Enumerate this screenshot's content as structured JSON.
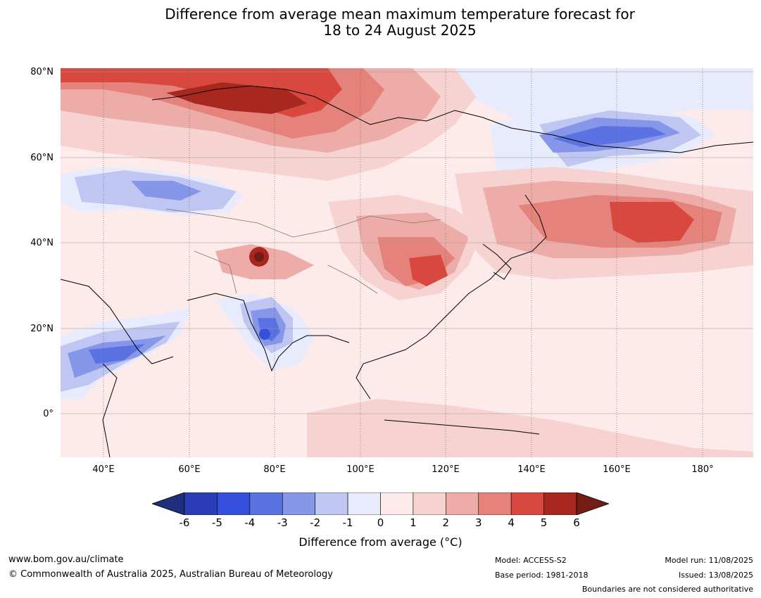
{
  "title_line1": "Difference from average mean maximum temperature forecast for",
  "title_line2": "18 to 24 August 2025",
  "lat_labels": [
    "80°N",
    "60°N",
    "40°N",
    "20°N",
    "0°"
  ],
  "lon_labels": [
    "40°E",
    "60°E",
    "80°E",
    "100°E",
    "120°E",
    "140°E",
    "160°E",
    "180°"
  ],
  "colorbar": {
    "title": "Difference from average (°C)",
    "ticks": [
      "-6",
      "-5",
      "-4",
      "-3",
      "-2",
      "-1",
      "0",
      "1",
      "2",
      "3",
      "4",
      "5",
      "6"
    ],
    "colors": [
      "#1f2f7e",
      "#2a3db4",
      "#3450dd",
      "#5b72e2",
      "#8696e8",
      "#bfc6f2",
      "#e8ebfb",
      "#fcebea",
      "#f6d2d0",
      "#eeaca8",
      "#e6827c",
      "#d9483f",
      "#a8271f",
      "#761c16"
    ]
  },
  "footer": {
    "website": "www.bom.gov.au/climate",
    "copyright": "© Commonwealth of Australia 2025, Australian Bureau of Meteorology",
    "model": "Model: ACCESS-S2",
    "base_period": "Base period: 1981-2018",
    "model_run": "Model run: 11/08/2025",
    "issued": "Issued: 13/08/2025",
    "disclaimer": "Boundaries are not considered authoritative"
  }
}
